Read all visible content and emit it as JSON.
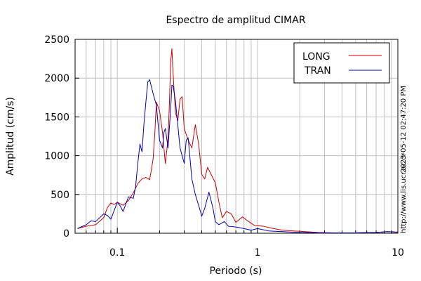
{
  "chart_data": {
    "type": "line",
    "title": "Espectro de amplitud CIMAR",
    "xlabel": "Periodo (s)",
    "ylabel": "Amplitud (cm/s)",
    "xscale": "log",
    "xlim": [
      0.05,
      10
    ],
    "ylim": [
      0,
      2500
    ],
    "grid": true,
    "legend_position": "top-right",
    "x_ticks": [
      {
        "value": 0.1,
        "label": "0.1"
      },
      {
        "value": 1,
        "label": "1"
      },
      {
        "value": 10,
        "label": "10"
      }
    ],
    "y_ticks": [
      {
        "value": 0,
        "label": "0"
      },
      {
        "value": 500,
        "label": "500"
      },
      {
        "value": 1000,
        "label": "1000"
      },
      {
        "value": 1500,
        "label": "1500"
      },
      {
        "value": 2000,
        "label": "2000"
      },
      {
        "value": 2500,
        "label": "2500"
      }
    ],
    "series": [
      {
        "name": "LONG",
        "color": "#cc0000",
        "points": [
          [
            0.052,
            60
          ],
          [
            0.06,
            90
          ],
          [
            0.07,
            110
          ],
          [
            0.08,
            200
          ],
          [
            0.085,
            330
          ],
          [
            0.09,
            390
          ],
          [
            0.095,
            370
          ],
          [
            0.1,
            400
          ],
          [
            0.11,
            360
          ],
          [
            0.12,
            420
          ],
          [
            0.13,
            520
          ],
          [
            0.14,
            640
          ],
          [
            0.15,
            700
          ],
          [
            0.16,
            720
          ],
          [
            0.17,
            690
          ],
          [
            0.175,
            820
          ],
          [
            0.18,
            960
          ],
          [
            0.185,
            1280
          ],
          [
            0.19,
            1690
          ],
          [
            0.2,
            1580
          ],
          [
            0.21,
            1300
          ],
          [
            0.22,
            900
          ],
          [
            0.23,
            1220
          ],
          [
            0.235,
            1650
          ],
          [
            0.24,
            2200
          ],
          [
            0.245,
            2380
          ],
          [
            0.25,
            2050
          ],
          [
            0.26,
            1550
          ],
          [
            0.27,
            1450
          ],
          [
            0.28,
            1730
          ],
          [
            0.29,
            1760
          ],
          [
            0.3,
            1350
          ],
          [
            0.32,
            1200
          ],
          [
            0.34,
            1100
          ],
          [
            0.36,
            1400
          ],
          [
            0.38,
            1150
          ],
          [
            0.4,
            760
          ],
          [
            0.42,
            700
          ],
          [
            0.44,
            850
          ],
          [
            0.46,
            780
          ],
          [
            0.5,
            650
          ],
          [
            0.53,
            400
          ],
          [
            0.56,
            200
          ],
          [
            0.6,
            280
          ],
          [
            0.65,
            250
          ],
          [
            0.7,
            140
          ],
          [
            0.78,
            210
          ],
          [
            0.85,
            160
          ],
          [
            0.95,
            100
          ],
          [
            1.1,
            90
          ],
          [
            1.3,
            60
          ],
          [
            1.5,
            40
          ],
          [
            1.8,
            30
          ],
          [
            2.2,
            20
          ],
          [
            2.7,
            10
          ],
          [
            3.5,
            5
          ],
          [
            5,
            5
          ],
          [
            7,
            10
          ],
          [
            8.5,
            20
          ],
          [
            10,
            10
          ]
        ]
      },
      {
        "name": "TRAN",
        "color": "#0000aa",
        "points": [
          [
            0.052,
            60
          ],
          [
            0.06,
            110
          ],
          [
            0.065,
            160
          ],
          [
            0.07,
            150
          ],
          [
            0.08,
            250
          ],
          [
            0.085,
            230
          ],
          [
            0.09,
            180
          ],
          [
            0.1,
            400
          ],
          [
            0.105,
            350
          ],
          [
            0.11,
            280
          ],
          [
            0.12,
            470
          ],
          [
            0.13,
            450
          ],
          [
            0.135,
            600
          ],
          [
            0.14,
            900
          ],
          [
            0.145,
            1150
          ],
          [
            0.15,
            1050
          ],
          [
            0.155,
            1420
          ],
          [
            0.16,
            1700
          ],
          [
            0.165,
            1950
          ],
          [
            0.17,
            1980
          ],
          [
            0.18,
            1800
          ],
          [
            0.19,
            1650
          ],
          [
            0.2,
            1200
          ],
          [
            0.21,
            1100
          ],
          [
            0.215,
            1300
          ],
          [
            0.22,
            1350
          ],
          [
            0.23,
            1100
          ],
          [
            0.24,
            1600
          ],
          [
            0.245,
            1910
          ],
          [
            0.25,
            1900
          ],
          [
            0.26,
            1700
          ],
          [
            0.28,
            1100
          ],
          [
            0.3,
            900
          ],
          [
            0.31,
            1200
          ],
          [
            0.32,
            1230
          ],
          [
            0.34,
            700
          ],
          [
            0.36,
            500
          ],
          [
            0.38,
            360
          ],
          [
            0.4,
            220
          ],
          [
            0.42,
            320
          ],
          [
            0.45,
            530
          ],
          [
            0.48,
            330
          ],
          [
            0.5,
            150
          ],
          [
            0.53,
            110
          ],
          [
            0.58,
            150
          ],
          [
            0.62,
            90
          ],
          [
            0.7,
            80
          ],
          [
            0.8,
            60
          ],
          [
            0.9,
            40
          ],
          [
            1.0,
            60
          ],
          [
            1.2,
            30
          ],
          [
            1.5,
            20
          ],
          [
            2.0,
            10
          ],
          [
            3,
            5
          ],
          [
            5,
            5
          ],
          [
            7,
            10
          ],
          [
            8.5,
            20
          ],
          [
            10,
            15
          ]
        ]
      }
    ],
    "side_text": [
      "2023-05-12 02:47:20 PM",
      "http://www.lis.ucr.ac.cr"
    ]
  }
}
